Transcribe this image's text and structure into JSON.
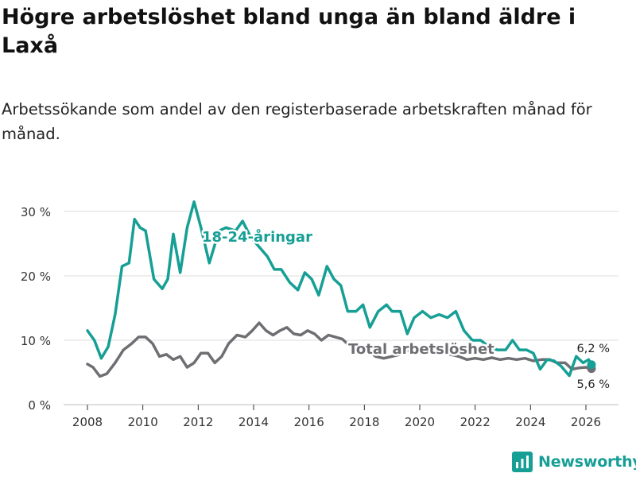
{
  "title": "Högre arbetslöshet bland unga än bland äldre i Laxå",
  "subtitle": "Arbetssökande som andel av den registerbaserade arbetskraften månad för månad.",
  "logo_text": "Newsworthy",
  "colors": {
    "youth": "#169f95",
    "total": "#6e6e73",
    "grid": "#dcdcdc",
    "text": "#333333"
  },
  "chart_data": {
    "type": "line",
    "title": "Högre arbetslöshet bland unga än bland äldre i Laxå",
    "xlabel": "",
    "ylabel": "",
    "xlim": [
      2007.5,
      2026.7
    ],
    "ylim": [
      0,
      32
    ],
    "x_ticks": [
      2008,
      2010,
      2012,
      2014,
      2016,
      2018,
      2020,
      2022,
      2024,
      2026
    ],
    "x_tick_labels": [
      "2008",
      "2010",
      "2012",
      "2014",
      "2016",
      "2018",
      "2020",
      "2022",
      "2024",
      "2026"
    ],
    "y_ticks": [
      0,
      10,
      20,
      30
    ],
    "y_tick_labels": [
      "0 %",
      "10 %",
      "20 %",
      "30 %"
    ],
    "series": [
      {
        "name": "18-24-åringar",
        "label": "18-24-åringar",
        "color": "#169f95",
        "end_label": "6,2 %",
        "points": [
          [
            2008.0,
            11.5
          ],
          [
            2008.25,
            10.0
          ],
          [
            2008.5,
            7.2
          ],
          [
            2008.75,
            9.0
          ],
          [
            2009.0,
            14.0
          ],
          [
            2009.25,
            21.5
          ],
          [
            2009.5,
            22.0
          ],
          [
            2009.7,
            28.8
          ],
          [
            2009.9,
            27.5
          ],
          [
            2010.1,
            27.0
          ],
          [
            2010.4,
            19.5
          ],
          [
            2010.7,
            18.0
          ],
          [
            2010.9,
            19.5
          ],
          [
            2011.1,
            26.5
          ],
          [
            2011.35,
            20.5
          ],
          [
            2011.6,
            27.5
          ],
          [
            2011.85,
            31.5
          ],
          [
            2012.1,
            27.5
          ],
          [
            2012.4,
            22.0
          ],
          [
            2012.75,
            27.0
          ],
          [
            2013.0,
            27.5
          ],
          [
            2013.35,
            27.0
          ],
          [
            2013.6,
            28.5
          ],
          [
            2013.9,
            26.0
          ],
          [
            2014.2,
            24.5
          ],
          [
            2014.5,
            23.0
          ],
          [
            2014.75,
            21.0
          ],
          [
            2015.0,
            21.0
          ],
          [
            2015.3,
            19.0
          ],
          [
            2015.6,
            17.8
          ],
          [
            2015.85,
            20.5
          ],
          [
            2016.1,
            19.5
          ],
          [
            2016.35,
            17.0
          ],
          [
            2016.65,
            21.5
          ],
          [
            2016.9,
            19.5
          ],
          [
            2017.15,
            18.5
          ],
          [
            2017.4,
            14.5
          ],
          [
            2017.7,
            14.5
          ],
          [
            2017.95,
            15.5
          ],
          [
            2018.2,
            12.0
          ],
          [
            2018.5,
            14.5
          ],
          [
            2018.8,
            15.5
          ],
          [
            2019.0,
            14.5
          ],
          [
            2019.3,
            14.5
          ],
          [
            2019.55,
            11.0
          ],
          [
            2019.8,
            13.5
          ],
          [
            2020.1,
            14.5
          ],
          [
            2020.4,
            13.5
          ],
          [
            2020.7,
            14.0
          ],
          [
            2021.0,
            13.5
          ],
          [
            2021.3,
            14.5
          ],
          [
            2021.6,
            11.5
          ],
          [
            2021.9,
            10.0
          ],
          [
            2022.2,
            10.0
          ],
          [
            2022.5,
            9.0
          ],
          [
            2022.8,
            8.5
          ],
          [
            2023.1,
            8.5
          ],
          [
            2023.35,
            10.0
          ],
          [
            2023.6,
            8.5
          ],
          [
            2023.85,
            8.5
          ],
          [
            2024.1,
            8.0
          ],
          [
            2024.35,
            5.5
          ],
          [
            2024.6,
            7.0
          ],
          [
            2024.85,
            6.8
          ],
          [
            2025.1,
            6.0
          ],
          [
            2025.4,
            4.5
          ],
          [
            2025.65,
            7.5
          ],
          [
            2025.9,
            6.5
          ],
          [
            2026.1,
            7.0
          ],
          [
            2026.2,
            6.2
          ]
        ]
      },
      {
        "name": "Total arbetslöshet",
        "label": "Total arbetslöshet",
        "color": "#6e6e73",
        "end_label": "5,6 %",
        "points": [
          [
            2008.0,
            6.3
          ],
          [
            2008.2,
            5.8
          ],
          [
            2008.45,
            4.4
          ],
          [
            2008.7,
            4.8
          ],
          [
            2009.0,
            6.5
          ],
          [
            2009.3,
            8.5
          ],
          [
            2009.6,
            9.5
          ],
          [
            2009.85,
            10.5
          ],
          [
            2010.1,
            10.5
          ],
          [
            2010.35,
            9.5
          ],
          [
            2010.6,
            7.5
          ],
          [
            2010.85,
            7.8
          ],
          [
            2011.1,
            7.0
          ],
          [
            2011.35,
            7.5
          ],
          [
            2011.6,
            5.8
          ],
          [
            2011.85,
            6.5
          ],
          [
            2012.1,
            8.0
          ],
          [
            2012.35,
            8.0
          ],
          [
            2012.6,
            6.5
          ],
          [
            2012.85,
            7.5
          ],
          [
            2013.1,
            9.5
          ],
          [
            2013.4,
            10.8
          ],
          [
            2013.7,
            10.5
          ],
          [
            2013.95,
            11.5
          ],
          [
            2014.2,
            12.7
          ],
          [
            2014.45,
            11.5
          ],
          [
            2014.7,
            10.8
          ],
          [
            2014.95,
            11.5
          ],
          [
            2015.2,
            12.0
          ],
          [
            2015.45,
            11.0
          ],
          [
            2015.7,
            10.8
          ],
          [
            2015.95,
            11.5
          ],
          [
            2016.2,
            11.0
          ],
          [
            2016.45,
            10.0
          ],
          [
            2016.7,
            10.8
          ],
          [
            2016.95,
            10.5
          ],
          [
            2017.2,
            10.2
          ],
          [
            2017.5,
            9.0
          ],
          [
            2017.8,
            8.5
          ],
          [
            2018.1,
            8.5
          ],
          [
            2018.4,
            7.5
          ],
          [
            2018.7,
            7.2
          ],
          [
            2019.0,
            7.5
          ],
          [
            2019.3,
            7.8
          ],
          [
            2019.6,
            8.5
          ],
          [
            2019.9,
            8.0
          ],
          [
            2020.2,
            8.5
          ],
          [
            2020.5,
            8.2
          ],
          [
            2020.8,
            8.0
          ],
          [
            2021.1,
            7.8
          ],
          [
            2021.4,
            7.5
          ],
          [
            2021.7,
            7.0
          ],
          [
            2022.0,
            7.2
          ],
          [
            2022.3,
            7.0
          ],
          [
            2022.6,
            7.3
          ],
          [
            2022.9,
            7.0
          ],
          [
            2023.2,
            7.2
          ],
          [
            2023.5,
            7.0
          ],
          [
            2023.8,
            7.2
          ],
          [
            2024.1,
            6.8
          ],
          [
            2024.4,
            7.0
          ],
          [
            2024.7,
            7.0
          ],
          [
            2024.95,
            6.5
          ],
          [
            2025.25,
            6.5
          ],
          [
            2025.5,
            5.5
          ],
          [
            2025.75,
            5.7
          ],
          [
            2026.0,
            5.8
          ],
          [
            2026.2,
            5.6
          ]
        ]
      }
    ]
  }
}
